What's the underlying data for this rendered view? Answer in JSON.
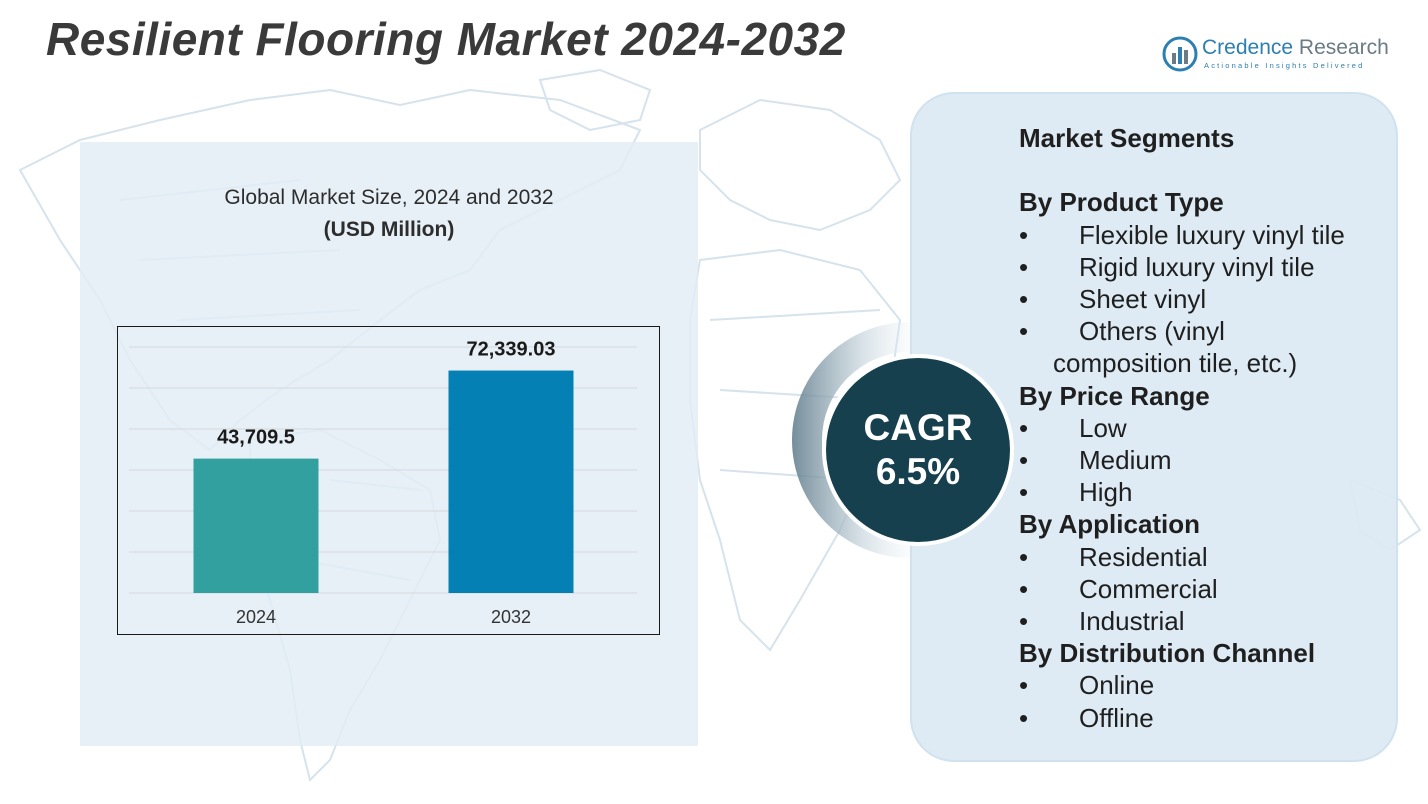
{
  "title": "Resilient Flooring Market 2024-2032",
  "logo": {
    "name_part1": "Credence",
    "name_part2": "Research",
    "tagline": "Actionable Insights Delivered",
    "icon": "bar-chart-circle-icon"
  },
  "chart_data": {
    "type": "bar",
    "title": "Global Market Size, 2024 and 2032",
    "subtitle": "(USD Million)",
    "categories": [
      "2024",
      "2032"
    ],
    "values": [
      43709.5,
      72339.03
    ],
    "value_labels": [
      "43,709.5",
      "72,339.03"
    ],
    "colors": [
      "#33a0a0",
      "#0580b4"
    ],
    "ylim": [
      0,
      80000
    ],
    "grid": true,
    "xlabel": "",
    "ylabel": ""
  },
  "cagr": {
    "label": "CAGR",
    "value": "6.5%"
  },
  "segments": {
    "heading": "Market Segments",
    "bullet": "•",
    "groups": [
      {
        "title": "By Product Type",
        "items": [
          "Flexible luxury vinyl tile",
          "Rigid luxury vinyl tile",
          "Sheet vinyl"
        ]
      },
      {
        "title": "By Price Range",
        "items": [
          "Low",
          "Medium",
          "High"
        ]
      },
      {
        "title": "By Application",
        "items": [
          "Residential",
          "Commercial",
          "Industrial"
        ]
      },
      {
        "title": "By Distribution Channel",
        "items": [
          "Online",
          "Offline"
        ]
      }
    ],
    "others_item_line1": "Others (vinyl",
    "others_item_line2": "composition tile, etc.)"
  },
  "colors": {
    "title": "#3a3a3a",
    "cagr_circle": "#17404f",
    "panel": "#dceaf3",
    "map_stroke": "#d9e6ee"
  }
}
